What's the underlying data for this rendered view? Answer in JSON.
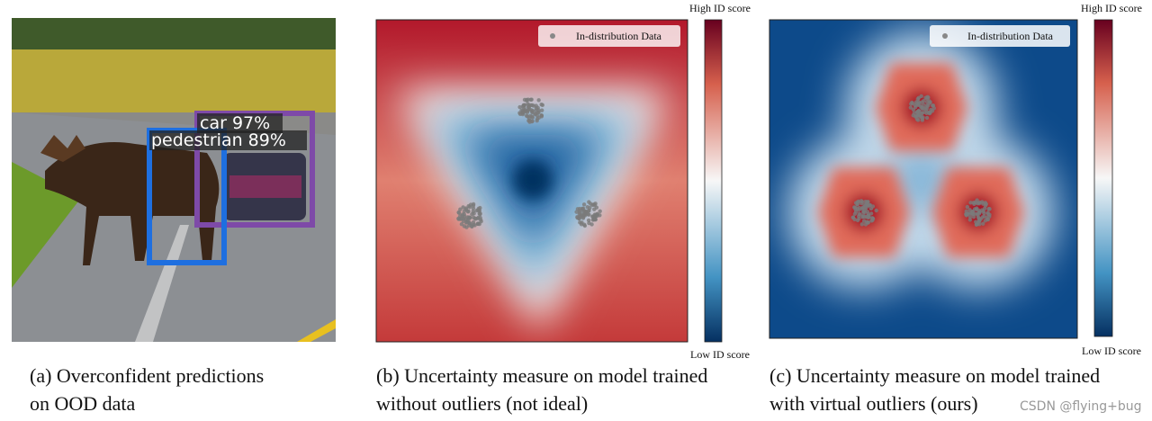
{
  "panels": [
    {
      "caption": [
        "(a) Overconfident predictions",
        "on OOD data"
      ],
      "detections": [
        {
          "label": "car 97%"
        },
        {
          "label": "pedestrian 89%"
        }
      ]
    },
    {
      "caption": [
        "(b) Uncertainty measure on model trained",
        "without outliers (not ideal)"
      ],
      "legend": "In-distribution Data",
      "colorbar_top": "High ID score",
      "colorbar_bottom": "Low ID score"
    },
    {
      "caption": [
        "(c) Uncertainty measure on model trained",
        "with virtual outliers (ours)"
      ],
      "legend": "In-distribution Data",
      "colorbar_top": "High ID score",
      "colorbar_bottom": "Low ID score"
    }
  ],
  "watermark": "CSDN @flying+bug"
}
